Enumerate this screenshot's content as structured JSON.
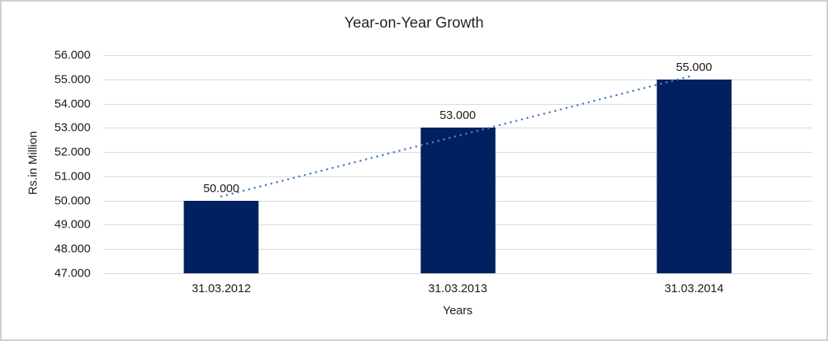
{
  "window": {
    "background_color": "#ffffff",
    "border_color": "#d0cece"
  },
  "chart_data": {
    "type": "bar",
    "title": "Year-on-Year Growth",
    "xlabel": "Years",
    "ylabel": "Rs.in Million",
    "categories": [
      "31.03.2012",
      "31.03.2013",
      "31.03.2014"
    ],
    "series": [
      {
        "name": "Rs.in Million",
        "values": [
          50.0,
          53.0,
          55.0
        ],
        "data_labels": [
          "50.000",
          "53.000",
          "55.000"
        ],
        "color": "#002060"
      }
    ],
    "ylim": [
      47.0,
      56.0
    ],
    "ytick_values": [
      56.0,
      55.0,
      54.0,
      53.0,
      52.0,
      51.0,
      50.0,
      49.0,
      48.0,
      47.0
    ],
    "ytick_labels": [
      "56.000",
      "55.000",
      "54.000",
      "53.000",
      "52.000",
      "51.000",
      "50.000",
      "49.000",
      "48.000",
      "47.000"
    ],
    "grid": true,
    "gridline_color": "#d9d9d9",
    "legend_position": "none",
    "trendline": {
      "type": "linear",
      "style": "dotted",
      "color": "#4e81bd",
      "start_value": 50.17,
      "end_value": 55.17
    }
  }
}
